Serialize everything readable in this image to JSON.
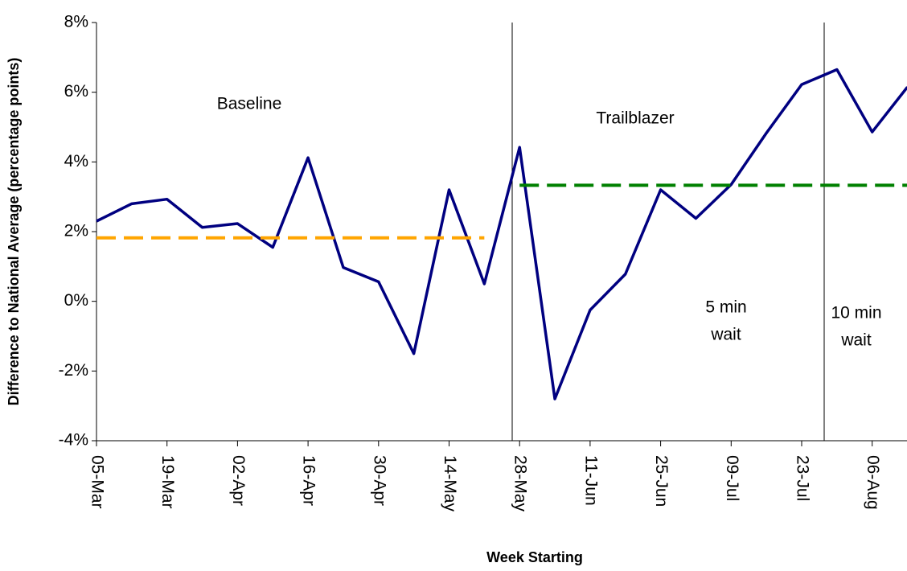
{
  "chart_data": {
    "type": "line",
    "xlabel": "Week Starting",
    "ylabel": "Difference to National Average (percentage points)",
    "categories": [
      "05-Mar",
      null,
      "19-Mar",
      null,
      "02-Apr",
      null,
      "16-Apr",
      null,
      "30-Apr",
      null,
      "14-May",
      null,
      "28-May",
      null,
      "11-Jun",
      null,
      "25-Jun",
      null,
      "09-Jul",
      null,
      "23-Jul",
      null,
      "06-Aug",
      null
    ],
    "series": [
      {
        "color": "#000080",
        "style": "solid",
        "values": [
          2.3,
          2.8,
          2.93,
          2.12,
          2.23,
          1.55,
          4.12,
          0.97,
          0.56,
          -1.5,
          3.2,
          0.5,
          4.42,
          -2.8,
          -0.25,
          0.78,
          3.2,
          2.38,
          3.35,
          4.83,
          6.22,
          6.65,
          4.86,
          6.15
        ]
      },
      {
        "color": "#ffa500",
        "style": "dashed",
        "values": [
          1.82,
          1.82,
          1.82,
          1.82,
          1.82,
          1.82,
          1.82,
          1.82,
          1.82,
          1.82,
          1.82,
          1.82,
          null,
          null,
          null,
          null,
          null,
          null,
          null,
          null,
          null,
          null,
          null,
          null
        ]
      },
      {
        "color": "#008000",
        "style": "dashed",
        "values": [
          null,
          null,
          null,
          null,
          null,
          null,
          null,
          null,
          null,
          null,
          null,
          null,
          3.33,
          3.33,
          3.33,
          3.33,
          3.33,
          3.33,
          3.33,
          3.33,
          3.33,
          3.33,
          3.33,
          3.33
        ]
      }
    ],
    "ylim": [
      -4,
      8
    ],
    "yticks": [
      {
        "value": -4,
        "label": "-4%"
      },
      {
        "value": -2,
        "label": "-2%"
      },
      {
        "value": 0,
        "label": "0%"
      },
      {
        "value": 2,
        "label": "2%"
      },
      {
        "value": 4,
        "label": "4%"
      },
      {
        "value": 6,
        "label": "6%"
      },
      {
        "value": 8,
        "label": "8%"
      }
    ],
    "annotations": [
      [
        "Baseline"
      ],
      [
        "Trailblazer"
      ],
      [
        "5 min",
        "wait"
      ],
      [
        "10 min",
        "wait"
      ]
    ]
  }
}
